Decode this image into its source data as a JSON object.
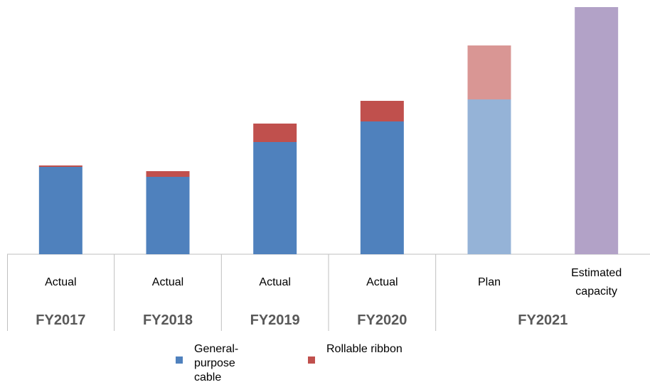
{
  "chart_data": {
    "type": "bar",
    "stacked": true,
    "categories": [
      "Actual",
      "Actual",
      "Actual",
      "Actual",
      "Plan",
      "Estimated capacity"
    ],
    "groups": [
      {
        "label": "FY2017",
        "span": 1
      },
      {
        "label": "FY2018",
        "span": 1
      },
      {
        "label": "FY2019",
        "span": 1
      },
      {
        "label": "FY2020",
        "span": 1
      },
      {
        "label": "FY2021",
        "span": 2
      }
    ],
    "series": [
      {
        "name": "General-purpose cable",
        "color": "#4f81bd",
        "point_colors": [
          null,
          null,
          null,
          null,
          "#95b3d7",
          null
        ],
        "values": [
          123,
          109,
          158,
          187,
          218,
          null
        ]
      },
      {
        "name": "Rollable ribbon",
        "color": "#c0504d",
        "point_colors": [
          null,
          null,
          null,
          null,
          "#d99694",
          null
        ],
        "values": [
          2,
          8,
          26,
          29,
          76,
          null
        ]
      },
      {
        "color": "#b2a2c7",
        "values": [
          null,
          null,
          null,
          null,
          null,
          348
        ]
      }
    ],
    "ylim": [
      0,
      350
    ],
    "legend": "bottom"
  }
}
